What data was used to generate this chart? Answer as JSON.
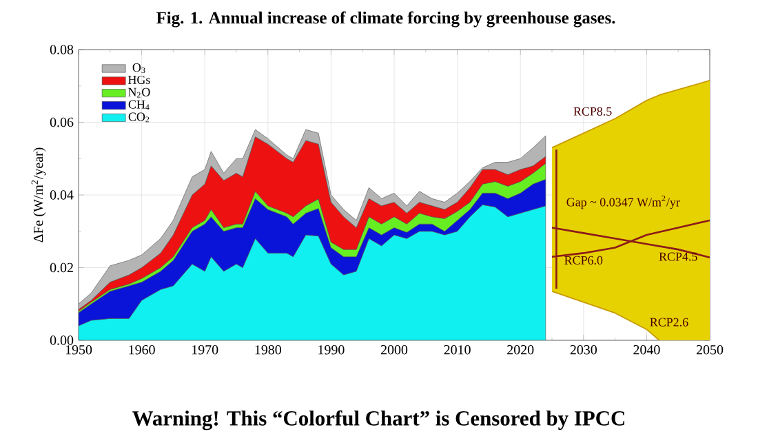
{
  "chart_data": {
    "type": "area",
    "stacked": true,
    "title": "Fig. 1. Annual increase of climate forcing by greenhouse gases.",
    "ylabel": "ΔFe (W/m$^{2}$/year)",
    "annotations": [
      "Gap ~ 0.0347 W/m$^{2}$/yr",
      "Warning! This “Colorful Chart” is Censored by IPCC"
    ],
    "x": [
      1950,
      1952,
      1955,
      1958,
      1960,
      1963,
      1965,
      1968,
      1970,
      1971,
      1973,
      1975,
      1976,
      1978,
      1980,
      1983,
      1984,
      1986,
      1988,
      1990,
      1992,
      1994,
      1996,
      1998,
      2000,
      2002,
      2004,
      2006,
      2008,
      2010,
      2012,
      2014,
      2016,
      2018,
      2020,
      2022,
      2024
    ],
    "series": [
      {
        "name": "CO$_{2}$",
        "color": "#11f0f0",
        "values": [
          0.004,
          0.0055,
          0.006,
          0.006,
          0.011,
          0.014,
          0.015,
          0.021,
          0.019,
          0.023,
          0.019,
          0.021,
          0.02,
          0.028,
          0.024,
          0.024,
          0.023,
          0.029,
          0.0287,
          0.021,
          0.018,
          0.019,
          0.028,
          0.026,
          0.029,
          0.028,
          0.03,
          0.03,
          0.029,
          0.03,
          0.034,
          0.0373,
          0.0367,
          0.034,
          0.035,
          0.036,
          0.037
        ]
      },
      {
        "name": "CH$_{4}$",
        "color": "#0a14d8",
        "values": [
          0.0036,
          0.0045,
          0.0075,
          0.009,
          0.005,
          0.005,
          0.007,
          0.009,
          0.013,
          0.011,
          0.011,
          0.01,
          0.011,
          0.011,
          0.012,
          0.01,
          0.009,
          0.006,
          0.0076,
          0.0045,
          0.005,
          0.004,
          0.003,
          0.003,
          0.002,
          0.0017,
          0.002,
          0.002,
          0.001,
          0.003,
          0.002,
          0.0032,
          0.0038,
          0.005,
          0.0055,
          0.007,
          0.0073
        ]
      },
      {
        "name": "N$_{2}$O",
        "color": "#66ee22",
        "values": [
          0.0004,
          0.0005,
          0.0005,
          0.0005,
          0.001,
          0.001,
          0.001,
          0.001,
          0.001,
          0.002,
          0.001,
          0.001,
          0.001,
          0.002,
          0.001,
          0.001,
          0.002,
          0.002,
          0.0026,
          0.0015,
          0.002,
          0.002,
          0.003,
          0.003,
          0.003,
          0.0023,
          0.003,
          0.002,
          0.0035,
          0.0025,
          0.002,
          0.0025,
          0.0032,
          0.0034,
          0.0032,
          0.003,
          0.0044
        ]
      },
      {
        "name": "HGs",
        "color": "#ee1111",
        "values": [
          0.0005,
          0.0005,
          0.002,
          0.0025,
          0.003,
          0.004,
          0.006,
          0.009,
          0.01,
          0.012,
          0.013,
          0.014,
          0.013,
          0.015,
          0.017,
          0.015,
          0.015,
          0.018,
          0.0151,
          0.011,
          0.009,
          0.006,
          0.005,
          0.005,
          0.004,
          0.003,
          0.003,
          0.003,
          0.0025,
          0.0025,
          0.004,
          0.004,
          0.0033,
          0.0032,
          0.0033,
          0.002,
          0.0019
        ]
      },
      {
        "name": "O$_{3}$",
        "color": "#b4b4b4",
        "values": [
          0.0015,
          0.002,
          0.0045,
          0.004,
          0.0035,
          0.004,
          0.004,
          0.005,
          0.004,
          0.004,
          0.002,
          0.004,
          0.005,
          0.002,
          0.0015,
          0.001,
          0.001,
          0.003,
          0.003,
          0.002,
          0.002,
          0.002,
          0.003,
          0.002,
          0.0025,
          0.002,
          0.003,
          0.002,
          0.002,
          0.0025,
          0.0017,
          0.0005,
          0.002,
          0.0034,
          0.003,
          0.005,
          0.0057
        ]
      },
      {
        "type": "line",
        "name": "RCP8.5",
        "color": "#c89a00",
        "x": [
          2025,
          2030,
          2035,
          2040,
          2042,
          2050
        ],
        "values": [
          0.053,
          0.057,
          0.061,
          0.066,
          0.0675,
          0.0715
        ],
        "lower": [
          0.0135,
          0.0105,
          0.0075,
          0.003,
          0,
          0
        ],
        "upper": [
          0.053,
          0.057,
          0.061,
          0.066,
          0.0675,
          0.0715
        ]
      },
      {
        "type": "line",
        "name": "RCP6.0",
        "color": "#8b1a1a",
        "x": [
          2025,
          2030,
          2035,
          2040,
          2045,
          2050
        ],
        "values": [
          0.023,
          0.024,
          0.0255,
          0.029,
          0.031,
          0.033
        ]
      },
      {
        "type": "line",
        "name": "RCP4.5",
        "color": "#8b1a1a",
        "x": [
          2025,
          2030,
          2035,
          2040,
          2045,
          2050
        ],
        "values": [
          0.031,
          0.0295,
          0.028,
          0.0265,
          0.025,
          0.0228
        ]
      },
      {
        "type": "line",
        "name": "RCP2.6",
        "color": "#c89a00",
        "x": [
          2025,
          2030,
          2035,
          2040,
          2042
        ],
        "values": [
          0.0135,
          0.0105,
          0.0075,
          0.003,
          0
        ]
      },
      {
        "type": "line",
        "color": "#8b1a1a",
        "x": [
          2025.7,
          2025.7
        ],
        "values": [
          0.0142,
          0.0525
        ]
      }
    ],
    "xlim": [
      1950,
      2050
    ],
    "ylim": [
      0,
      0.08
    ],
    "xticks": [
      1950,
      1960,
      1970,
      1980,
      1990,
      2000,
      2010,
      2020,
      2030,
      2040,
      2050
    ],
    "yticks": [
      {
        "value": 0,
        "label": "0.00"
      },
      {
        "value": 0.02,
        "label": "0.02"
      },
      {
        "value": 0.04,
        "label": "0.04"
      },
      {
        "value": 0.06,
        "label": "0.06"
      },
      {
        "value": 0.08,
        "label": "0.08"
      }
    ],
    "grid": true,
    "legend": "top left"
  }
}
